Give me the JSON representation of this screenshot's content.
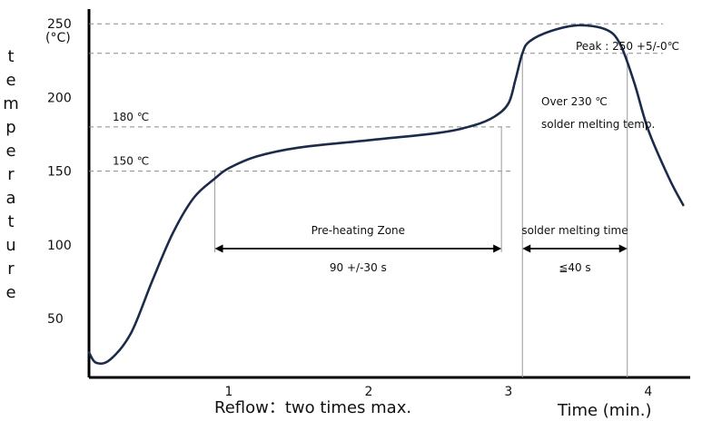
{
  "chart_data": {
    "type": "line",
    "y_unit_label": "(°C)",
    "ylabel": "temperature",
    "xlabel": "Time (min.)",
    "footer_note": "Reflow：two times max.",
    "xlim": [
      0.0,
      4.3
    ],
    "ylim": [
      10,
      260
    ],
    "x_ticks": [
      1,
      2,
      3,
      4
    ],
    "y_ticks": [
      50,
      100,
      150,
      200,
      250
    ],
    "grid": false,
    "series": [
      {
        "points": [
          [
            0.0,
            27
          ],
          [
            0.05,
            20
          ],
          [
            0.15,
            22
          ],
          [
            0.3,
            40
          ],
          [
            0.45,
            75
          ],
          [
            0.6,
            108
          ],
          [
            0.75,
            132
          ],
          [
            0.9,
            145
          ],
          [
            1.0,
            152
          ],
          [
            1.2,
            160
          ],
          [
            1.5,
            166
          ],
          [
            2.0,
            171
          ],
          [
            2.5,
            176
          ],
          [
            2.75,
            181
          ],
          [
            2.9,
            187
          ],
          [
            3.0,
            196
          ],
          [
            3.05,
            212
          ],
          [
            3.1,
            230
          ],
          [
            3.15,
            238
          ],
          [
            3.3,
            245
          ],
          [
            3.5,
            249
          ],
          [
            3.7,
            246
          ],
          [
            3.8,
            236
          ],
          [
            3.9,
            210
          ],
          [
            4.0,
            178
          ],
          [
            4.15,
            145
          ],
          [
            4.25,
            127
          ]
        ]
      }
    ],
    "reference_lines": [
      {
        "value": 150,
        "label": "150 ℃"
      },
      {
        "value": 180,
        "label": "180 ℃"
      },
      {
        "value": 230,
        "label": ""
      },
      {
        "value": 250,
        "label": ""
      }
    ],
    "annotations": {
      "peak": "Peak : 250 +5/-0℃",
      "over230_line1": "Over 230 ℃",
      "over230_line2": "solder melting temp."
    },
    "zones": [
      {
        "x_start": 0.9,
        "x_end": 2.95,
        "top_label": "Pre-heating Zone",
        "bottom_label": "90 +/-30 s"
      },
      {
        "x_start": 3.1,
        "x_end": 3.85,
        "top_label": "solder melting time",
        "bottom_label": "≦40 s"
      }
    ]
  }
}
